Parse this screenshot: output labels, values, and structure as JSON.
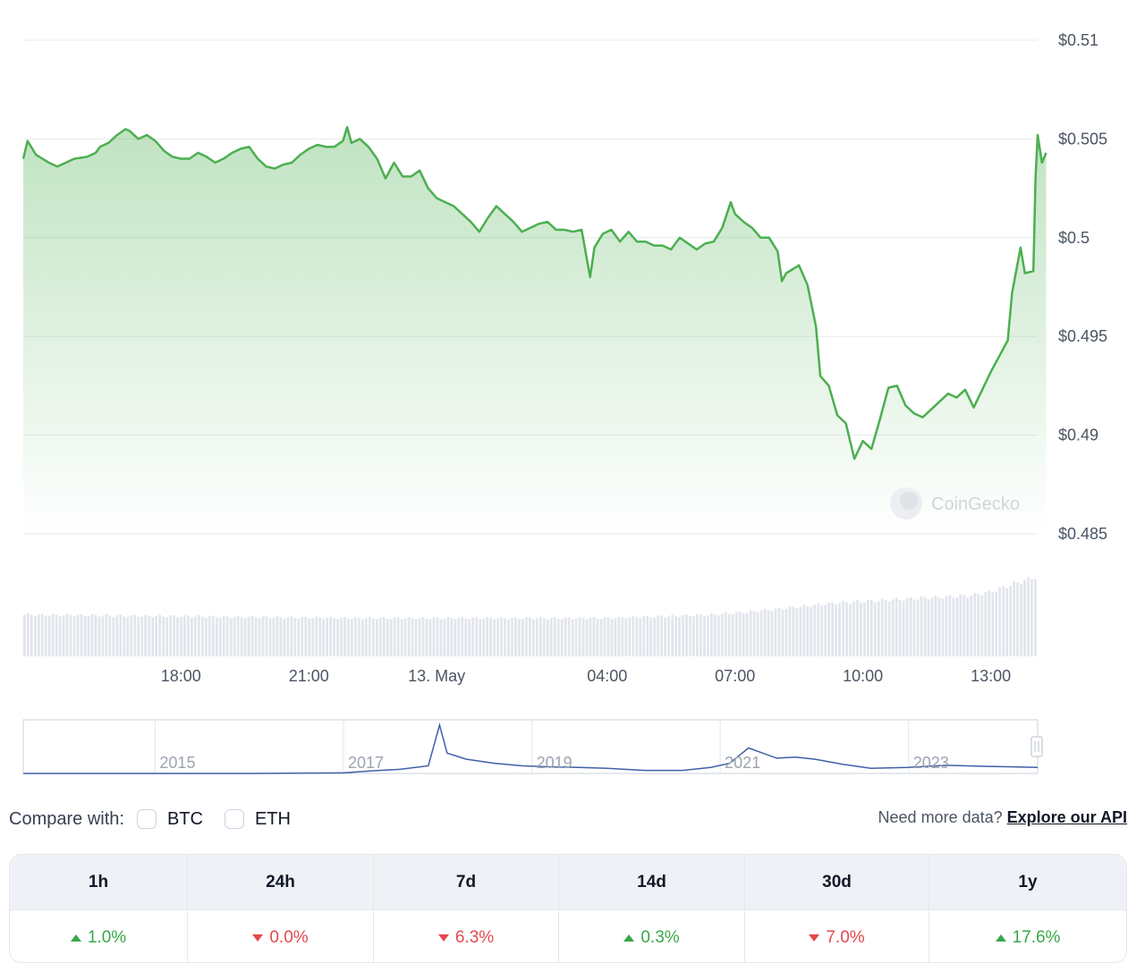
{
  "chart_data": {
    "type": "area",
    "price": {
      "y_ticks": [
        "$0.51",
        "$0.505",
        "$0.5",
        "$0.495",
        "$0.49",
        "$0.485"
      ],
      "ylim": [
        0.485,
        0.51
      ],
      "x_ticks": [
        "18:00",
        "21:00",
        "13. May",
        "04:00",
        "07:00",
        "10:00",
        "13:00"
      ],
      "x_tick_hours": [
        18,
        21,
        24,
        28,
        31,
        34,
        37
      ],
      "xlim_hours": [
        14.3,
        38.1
      ],
      "series": [
        {
          "values": [
            [
              14.3,
              0.504
            ],
            [
              14.4,
              0.5049
            ],
            [
              14.6,
              0.5042
            ],
            [
              14.9,
              0.5038
            ],
            [
              15.1,
              0.5036
            ],
            [
              15.3,
              0.5038
            ],
            [
              15.5,
              0.504
            ],
            [
              15.8,
              0.5041
            ],
            [
              16.0,
              0.5043
            ],
            [
              16.1,
              0.5046
            ],
            [
              16.3,
              0.5048
            ],
            [
              16.5,
              0.5052
            ],
            [
              16.7,
              0.5055
            ],
            [
              16.8,
              0.5054
            ],
            [
              17.0,
              0.505
            ],
            [
              17.2,
              0.5052
            ],
            [
              17.4,
              0.5049
            ],
            [
              17.6,
              0.5044
            ],
            [
              17.8,
              0.5041
            ],
            [
              18.0,
              0.504
            ],
            [
              18.2,
              0.504
            ],
            [
              18.4,
              0.5043
            ],
            [
              18.6,
              0.5041
            ],
            [
              18.8,
              0.5038
            ],
            [
              19.0,
              0.504
            ],
            [
              19.2,
              0.5043
            ],
            [
              19.4,
              0.5045
            ],
            [
              19.6,
              0.5046
            ],
            [
              19.8,
              0.504
            ],
            [
              20.0,
              0.5036
            ],
            [
              20.2,
              0.5035
            ],
            [
              20.4,
              0.5037
            ],
            [
              20.6,
              0.5038
            ],
            [
              20.8,
              0.5042
            ],
            [
              21.0,
              0.5045
            ],
            [
              21.2,
              0.5047
            ],
            [
              21.4,
              0.5046
            ],
            [
              21.6,
              0.5046
            ],
            [
              21.8,
              0.5049
            ],
            [
              21.9,
              0.5056
            ],
            [
              22.0,
              0.5048
            ],
            [
              22.2,
              0.505
            ],
            [
              22.4,
              0.5046
            ],
            [
              22.6,
              0.504
            ],
            [
              22.8,
              0.503
            ],
            [
              23.0,
              0.5038
            ],
            [
              23.2,
              0.5031
            ],
            [
              23.4,
              0.5031
            ],
            [
              23.6,
              0.5034
            ],
            [
              23.8,
              0.5025
            ],
            [
              24.0,
              0.502
            ],
            [
              24.2,
              0.5018
            ],
            [
              24.4,
              0.5016
            ],
            [
              24.6,
              0.5012
            ],
            [
              24.8,
              0.5008
            ],
            [
              25.0,
              0.5003
            ],
            [
              25.2,
              0.501
            ],
            [
              25.4,
              0.5016
            ],
            [
              25.6,
              0.5012
            ],
            [
              25.8,
              0.5008
            ],
            [
              26.0,
              0.5003
            ],
            [
              26.2,
              0.5005
            ],
            [
              26.4,
              0.5007
            ],
            [
              26.6,
              0.5008
            ],
            [
              26.8,
              0.5004
            ],
            [
              27.0,
              0.5004
            ],
            [
              27.2,
              0.5003
            ],
            [
              27.4,
              0.5004
            ],
            [
              27.6,
              0.498
            ],
            [
              27.7,
              0.4995
            ],
            [
              27.9,
              0.5002
            ],
            [
              28.1,
              0.5004
            ],
            [
              28.3,
              0.4998
            ],
            [
              28.5,
              0.5003
            ],
            [
              28.7,
              0.4998
            ],
            [
              28.9,
              0.4998
            ],
            [
              29.1,
              0.4996
            ],
            [
              29.3,
              0.4996
            ],
            [
              29.5,
              0.4994
            ],
            [
              29.7,
              0.5
            ],
            [
              29.9,
              0.4997
            ],
            [
              30.1,
              0.4994
            ],
            [
              30.3,
              0.4997
            ],
            [
              30.5,
              0.4998
            ],
            [
              30.7,
              0.5005
            ],
            [
              30.9,
              0.5018
            ],
            [
              31.0,
              0.5012
            ],
            [
              31.2,
              0.5008
            ],
            [
              31.4,
              0.5005
            ],
            [
              31.6,
              0.5
            ],
            [
              31.8,
              0.5
            ],
            [
              32.0,
              0.4993
            ],
            [
              32.1,
              0.4978
            ],
            [
              32.2,
              0.4982
            ],
            [
              32.5,
              0.4986
            ],
            [
              32.7,
              0.4976
            ],
            [
              32.9,
              0.4955
            ],
            [
              33.0,
              0.493
            ],
            [
              33.2,
              0.4925
            ],
            [
              33.4,
              0.491
            ],
            [
              33.6,
              0.4906
            ],
            [
              33.8,
              0.4888
            ],
            [
              34.0,
              0.4897
            ],
            [
              34.2,
              0.4893
            ],
            [
              34.4,
              0.4908
            ],
            [
              34.6,
              0.4924
            ],
            [
              34.8,
              0.4925
            ],
            [
              35.0,
              0.4915
            ],
            [
              35.2,
              0.4911
            ],
            [
              35.4,
              0.4909
            ],
            [
              35.6,
              0.4913
            ],
            [
              35.8,
              0.4917
            ],
            [
              36.0,
              0.4921
            ],
            [
              36.2,
              0.4919
            ],
            [
              36.4,
              0.4923
            ],
            [
              36.6,
              0.4914
            ],
            [
              36.8,
              0.4923
            ],
            [
              37.0,
              0.4932
            ],
            [
              37.2,
              0.494
            ],
            [
              37.4,
              0.4948
            ],
            [
              37.5,
              0.4972
            ],
            [
              37.7,
              0.4995
            ],
            [
              37.8,
              0.4982
            ],
            [
              38.0,
              0.4983
            ],
            [
              38.05,
              0.503
            ],
            [
              38.1,
              0.5052
            ],
            [
              38.2,
              0.5038
            ],
            [
              38.3,
              0.5043
            ]
          ]
        }
      ]
    },
    "volume": {
      "values": [
        [
          14.3,
          0.48
        ],
        [
          22.0,
          0.44
        ],
        [
          28.0,
          0.44
        ],
        [
          30.5,
          0.48
        ],
        [
          31.5,
          0.52
        ],
        [
          32.7,
          0.58
        ],
        [
          33.5,
          0.62
        ],
        [
          35.0,
          0.66
        ],
        [
          36.5,
          0.7
        ],
        [
          37.0,
          0.74
        ],
        [
          37.7,
          0.86
        ],
        [
          38.3,
          0.95
        ]
      ]
    },
    "navigator": {
      "x_ticks": [
        "2015",
        "2017",
        "2019",
        "2021",
        "2023"
      ],
      "x_tick_years": [
        2015,
        2017,
        2019,
        2021,
        2023
      ],
      "xlim_years": [
        2013.6,
        2024.37
      ],
      "series": [
        {
          "values": [
            [
              2013.6,
              0.0
            ],
            [
              2016.0,
              0.0
            ],
            [
              2017.0,
              0.01
            ],
            [
              2017.3,
              0.05
            ],
            [
              2017.6,
              0.08
            ],
            [
              2017.9,
              0.15
            ],
            [
              2018.02,
              0.95
            ],
            [
              2018.1,
              0.4
            ],
            [
              2018.3,
              0.28
            ],
            [
              2018.6,
              0.2
            ],
            [
              2018.9,
              0.15
            ],
            [
              2019.2,
              0.13
            ],
            [
              2019.5,
              0.12
            ],
            [
              2019.8,
              0.1
            ],
            [
              2020.2,
              0.06
            ],
            [
              2020.6,
              0.06
            ],
            [
              2020.9,
              0.12
            ],
            [
              2021.1,
              0.2
            ],
            [
              2021.3,
              0.5
            ],
            [
              2021.45,
              0.4
            ],
            [
              2021.6,
              0.3
            ],
            [
              2021.8,
              0.32
            ],
            [
              2022.0,
              0.28
            ],
            [
              2022.3,
              0.18
            ],
            [
              2022.6,
              0.1
            ],
            [
              2023.0,
              0.12
            ],
            [
              2023.4,
              0.16
            ],
            [
              2023.8,
              0.14
            ],
            [
              2024.1,
              0.13
            ],
            [
              2024.37,
              0.12
            ]
          ]
        }
      ]
    },
    "watermark": "CoinGecko",
    "colors": {
      "line": "#4caf50",
      "area_top": "#4caf50",
      "navigator": "#3f5fa8",
      "volume": "#e2e5ec",
      "grid": "#e7e9ee"
    }
  },
  "compare": {
    "label": "Compare with:",
    "options": [
      {
        "label": "BTC",
        "checked": false
      },
      {
        "label": "ETH",
        "checked": false
      }
    ]
  },
  "api": {
    "prompt": "Need more data?",
    "link": "Explore our API"
  },
  "performance": {
    "headers": [
      "1h",
      "24h",
      "7d",
      "14d",
      "30d",
      "1y"
    ],
    "values": [
      {
        "text": "1.0%",
        "direction": "up"
      },
      {
        "text": "0.0%",
        "direction": "down"
      },
      {
        "text": "6.3%",
        "direction": "down"
      },
      {
        "text": "0.3%",
        "direction": "up"
      },
      {
        "text": "7.0%",
        "direction": "down"
      },
      {
        "text": "17.6%",
        "direction": "up"
      }
    ],
    "colors": {
      "up": "#3aa648",
      "down": "#e5484d"
    }
  }
}
